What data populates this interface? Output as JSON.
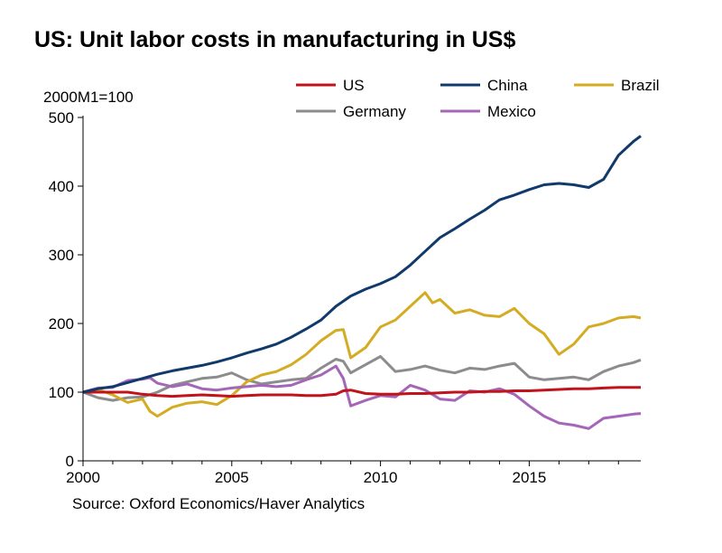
{
  "chart_data": {
    "type": "line",
    "title": "US: Unit labor costs in manufacturing in US$",
    "ylabel": "2000M1=100",
    "source": "Source: Oxford Economics/Haver Analytics",
    "xlim": [
      2000,
      2018.75
    ],
    "ylim": [
      0,
      500
    ],
    "x_ticks": [
      2000,
      2005,
      2010,
      2015
    ],
    "y_ticks": [
      0,
      100,
      200,
      300,
      400,
      500
    ],
    "legend_position": "top",
    "series": [
      {
        "name": "US",
        "color": "#c0131c",
        "points": [
          [
            2000,
            100
          ],
          [
            2000.5,
            100
          ],
          [
            2001,
            100
          ],
          [
            2001.5,
            100
          ],
          [
            2002,
            97
          ],
          [
            2002.5,
            95
          ],
          [
            2003,
            94
          ],
          [
            2003.5,
            95
          ],
          [
            2004,
            96
          ],
          [
            2004.5,
            95
          ],
          [
            2005,
            94
          ],
          [
            2005.5,
            95
          ],
          [
            2006,
            96
          ],
          [
            2006.5,
            96
          ],
          [
            2007,
            96
          ],
          [
            2007.5,
            95
          ],
          [
            2008,
            95
          ],
          [
            2008.5,
            97
          ],
          [
            2008.75,
            102
          ],
          [
            2009,
            103
          ],
          [
            2009.5,
            98
          ],
          [
            2010,
            97
          ],
          [
            2010.5,
            97
          ],
          [
            2011,
            98
          ],
          [
            2011.5,
            98
          ],
          [
            2012,
            99
          ],
          [
            2012.5,
            100
          ],
          [
            2013,
            100
          ],
          [
            2013.5,
            101
          ],
          [
            2014,
            101
          ],
          [
            2014.5,
            102
          ],
          [
            2015,
            102
          ],
          [
            2015.5,
            103
          ],
          [
            2016,
            104
          ],
          [
            2016.5,
            105
          ],
          [
            2017,
            105
          ],
          [
            2017.5,
            106
          ],
          [
            2018,
            107
          ],
          [
            2018.75,
            107
          ]
        ]
      },
      {
        "name": "China",
        "color": "#0f3a6b",
        "points": [
          [
            2000,
            100
          ],
          [
            2000.5,
            105
          ],
          [
            2001,
            108
          ],
          [
            2001.5,
            114
          ],
          [
            2002,
            120
          ],
          [
            2002.5,
            126
          ],
          [
            2003,
            131
          ],
          [
            2003.5,
            135
          ],
          [
            2004,
            139
          ],
          [
            2004.5,
            144
          ],
          [
            2005,
            150
          ],
          [
            2005.5,
            157
          ],
          [
            2006,
            163
          ],
          [
            2006.5,
            170
          ],
          [
            2007,
            180
          ],
          [
            2007.5,
            192
          ],
          [
            2008,
            205
          ],
          [
            2008.5,
            225
          ],
          [
            2009,
            240
          ],
          [
            2009.5,
            250
          ],
          [
            2010,
            258
          ],
          [
            2010.5,
            268
          ],
          [
            2011,
            285
          ],
          [
            2011.5,
            305
          ],
          [
            2012,
            325
          ],
          [
            2012.5,
            338
          ],
          [
            2013,
            352
          ],
          [
            2013.5,
            365
          ],
          [
            2014,
            380
          ],
          [
            2014.5,
            387
          ],
          [
            2015,
            395
          ],
          [
            2015.5,
            402
          ],
          [
            2016,
            404
          ],
          [
            2016.5,
            402
          ],
          [
            2017,
            398
          ],
          [
            2017.5,
            410
          ],
          [
            2018,
            445
          ],
          [
            2018.5,
            465
          ],
          [
            2018.75,
            473
          ]
        ]
      },
      {
        "name": "Brazil",
        "color": "#d4ac24",
        "points": [
          [
            2000,
            100
          ],
          [
            2000.5,
            104
          ],
          [
            2001,
            96
          ],
          [
            2001.5,
            85
          ],
          [
            2002,
            90
          ],
          [
            2002.25,
            72
          ],
          [
            2002.5,
            65
          ],
          [
            2003,
            78
          ],
          [
            2003.5,
            84
          ],
          [
            2004,
            86
          ],
          [
            2004.5,
            82
          ],
          [
            2005,
            95
          ],
          [
            2005.5,
            115
          ],
          [
            2006,
            125
          ],
          [
            2006.5,
            130
          ],
          [
            2007,
            140
          ],
          [
            2007.5,
            155
          ],
          [
            2008,
            175
          ],
          [
            2008.5,
            190
          ],
          [
            2008.75,
            191
          ],
          [
            2009,
            150
          ],
          [
            2009.5,
            165
          ],
          [
            2010,
            195
          ],
          [
            2010.5,
            205
          ],
          [
            2011,
            225
          ],
          [
            2011.5,
            245
          ],
          [
            2011.75,
            230
          ],
          [
            2012,
            235
          ],
          [
            2012.5,
            215
          ],
          [
            2013,
            220
          ],
          [
            2013.5,
            212
          ],
          [
            2014,
            210
          ],
          [
            2014.5,
            222
          ],
          [
            2015,
            200
          ],
          [
            2015.5,
            185
          ],
          [
            2016,
            155
          ],
          [
            2016.5,
            170
          ],
          [
            2017,
            195
          ],
          [
            2017.5,
            200
          ],
          [
            2018,
            208
          ],
          [
            2018.5,
            210
          ],
          [
            2018.75,
            208
          ]
        ]
      },
      {
        "name": "Germany",
        "color": "#8c8c8c",
        "points": [
          [
            2000,
            100
          ],
          [
            2000.5,
            92
          ],
          [
            2001,
            88
          ],
          [
            2001.5,
            92
          ],
          [
            2002,
            93
          ],
          [
            2002.5,
            100
          ],
          [
            2003,
            110
          ],
          [
            2003.5,
            115
          ],
          [
            2004,
            120
          ],
          [
            2004.5,
            122
          ],
          [
            2005,
            128
          ],
          [
            2005.5,
            118
          ],
          [
            2006,
            112
          ],
          [
            2006.5,
            115
          ],
          [
            2007,
            118
          ],
          [
            2007.5,
            120
          ],
          [
            2008,
            135
          ],
          [
            2008.5,
            148
          ],
          [
            2008.75,
            145
          ],
          [
            2009,
            128
          ],
          [
            2009.5,
            140
          ],
          [
            2010,
            152
          ],
          [
            2010.5,
            130
          ],
          [
            2011,
            133
          ],
          [
            2011.5,
            138
          ],
          [
            2012,
            132
          ],
          [
            2012.5,
            128
          ],
          [
            2013,
            135
          ],
          [
            2013.5,
            133
          ],
          [
            2014,
            138
          ],
          [
            2014.5,
            142
          ],
          [
            2015,
            122
          ],
          [
            2015.5,
            118
          ],
          [
            2016,
            120
          ],
          [
            2016.5,
            122
          ],
          [
            2017,
            118
          ],
          [
            2017.5,
            130
          ],
          [
            2018,
            138
          ],
          [
            2018.5,
            143
          ],
          [
            2018.75,
            147
          ]
        ]
      },
      {
        "name": "Mexico",
        "color": "#a566b8",
        "points": [
          [
            2000,
            100
          ],
          [
            2000.5,
            106
          ],
          [
            2001,
            107
          ],
          [
            2001.5,
            117
          ],
          [
            2002,
            119
          ],
          [
            2002.25,
            121
          ],
          [
            2002.5,
            113
          ],
          [
            2003,
            108
          ],
          [
            2003.5,
            112
          ],
          [
            2004,
            105
          ],
          [
            2004.5,
            103
          ],
          [
            2005,
            106
          ],
          [
            2005.5,
            108
          ],
          [
            2006,
            110
          ],
          [
            2006.5,
            108
          ],
          [
            2007,
            110
          ],
          [
            2007.5,
            118
          ],
          [
            2008,
            125
          ],
          [
            2008.5,
            138
          ],
          [
            2008.75,
            120
          ],
          [
            2009,
            80
          ],
          [
            2009.5,
            88
          ],
          [
            2010,
            95
          ],
          [
            2010.5,
            93
          ],
          [
            2011,
            110
          ],
          [
            2011.5,
            103
          ],
          [
            2012,
            90
          ],
          [
            2012.5,
            88
          ],
          [
            2013,
            102
          ],
          [
            2013.5,
            100
          ],
          [
            2014,
            105
          ],
          [
            2014.5,
            97
          ],
          [
            2015,
            80
          ],
          [
            2015.5,
            65
          ],
          [
            2016,
            55
          ],
          [
            2016.5,
            52
          ],
          [
            2017,
            47
          ],
          [
            2017.5,
            62
          ],
          [
            2018,
            65
          ],
          [
            2018.5,
            68
          ],
          [
            2018.75,
            69
          ]
        ]
      }
    ]
  }
}
